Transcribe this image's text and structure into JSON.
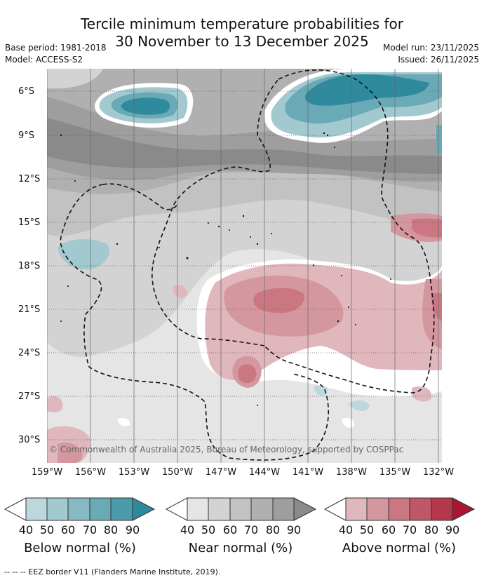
{
  "title_line1": "Tercile minimum temperature probabilities for",
  "title_line2": "30 November to 13 December 2025",
  "base_period": "Base period: 1981-2018",
  "model": "Model: ACCESS-S2",
  "model_run": "Model run: 23/11/2025",
  "issued": "Issued: 26/11/2025",
  "lat_labels": [
    "6°S",
    "9°S",
    "12°S",
    "15°S",
    "18°S",
    "21°S",
    "24°S",
    "27°S",
    "30°S"
  ],
  "lon_labels": [
    "159°W",
    "156°W",
    "153°W",
    "150°W",
    "147°W",
    "144°W",
    "141°W",
    "138°W",
    "135°W",
    "132°W"
  ],
  "copyright": "© Commonwealth of Australia 2025, Bureau of Meteorology, supported by COSPPac",
  "legends": [
    {
      "title": "Below normal (%)",
      "ticks": [
        "40",
        "50",
        "60",
        "70",
        "80",
        "90"
      ],
      "colors": [
        "#ffffff",
        "#bdd8dd",
        "#a2c9d0",
        "#86b9c3",
        "#6aa9b6",
        "#4b9aa9",
        "#2e8a9c"
      ]
    },
    {
      "title": "Near normal (%)",
      "ticks": [
        "40",
        "50",
        "60",
        "70",
        "80",
        "90"
      ],
      "colors": [
        "#ffffff",
        "#e5e5e5",
        "#d3d3d3",
        "#c2c2c2",
        "#b0b0b0",
        "#9e9e9e",
        "#8a8a8a"
      ]
    },
    {
      "title": "Above normal (%)",
      "ticks": [
        "40",
        "50",
        "60",
        "70",
        "80",
        "90"
      ],
      "colors": [
        "#ffffff",
        "#e0b7bd",
        "#d5979f",
        "#ca7782",
        "#bf5766",
        "#b4374a",
        "#a8172f"
      ]
    }
  ],
  "footnote": "--  --  -- EEZ border V11 (Flanders Marine Institute, 2019)."
}
